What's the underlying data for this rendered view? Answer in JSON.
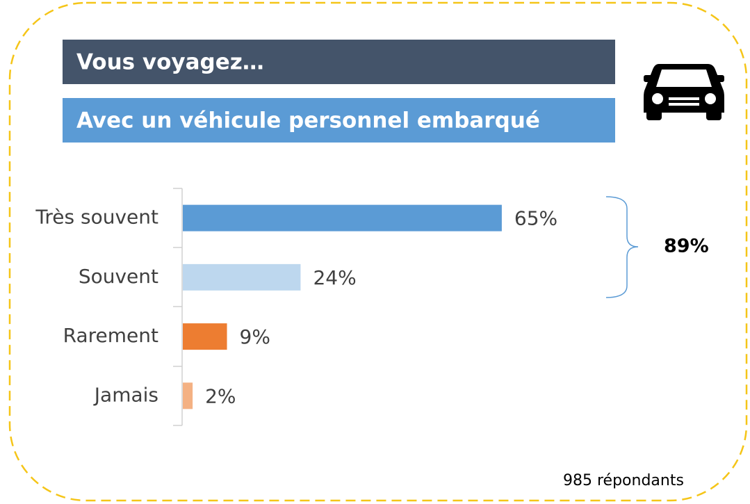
{
  "chart_data": {
    "type": "bar",
    "orientation": "horizontal",
    "title": "Vous voyagez…",
    "subtitle": "Avec un véhicule personnel embarqué",
    "categories": [
      "Très souvent",
      "Souvent",
      "Rarement",
      "Jamais"
    ],
    "values": [
      65,
      24,
      9,
      2
    ],
    "value_labels": [
      "65%",
      "24%",
      "9%",
      "2%"
    ],
    "colors": [
      "#5b9bd5",
      "#bdd7ee",
      "#ed7d31",
      "#f4b183"
    ],
    "xlim": [
      0,
      100
    ],
    "annotations": {
      "bracket_total": "89%",
      "respondents": "985 répondants"
    }
  }
}
